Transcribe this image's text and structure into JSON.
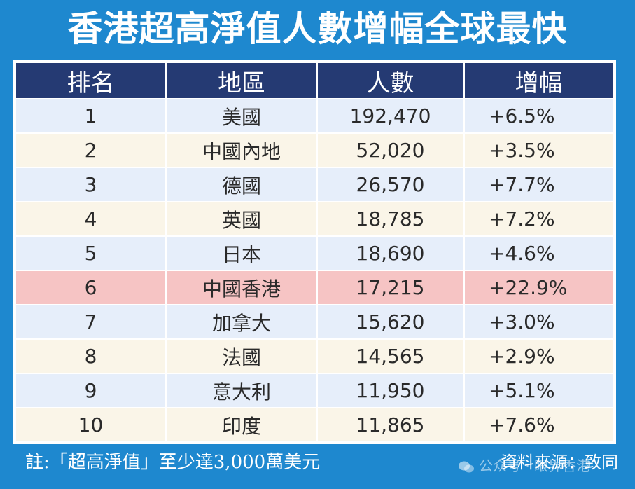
{
  "title": "香港超高淨值人數增幅全球最快",
  "table": {
    "headers": [
      "排名",
      "地區",
      "人數",
      "增幅"
    ],
    "rows": [
      {
        "rank": "1",
        "region": "美國",
        "count": "192,470",
        "growth": "+6.5%",
        "highlight": false
      },
      {
        "rank": "2",
        "region": "中國內地",
        "count": "52,020",
        "growth": "+3.5%",
        "highlight": false
      },
      {
        "rank": "3",
        "region": "德國",
        "count": "26,570",
        "growth": "+7.7%",
        "highlight": false
      },
      {
        "rank": "4",
        "region": "英國",
        "count": "18,785",
        "growth": "+7.2%",
        "highlight": false
      },
      {
        "rank": "5",
        "region": "日本",
        "count": "18,690",
        "growth": "+4.6%",
        "highlight": false
      },
      {
        "rank": "6",
        "region": "中國香港",
        "count": "17,215",
        "growth": "+22.9%",
        "highlight": true
      },
      {
        "rank": "7",
        "region": "加拿大",
        "count": "15,620",
        "growth": "+3.0%",
        "highlight": false
      },
      {
        "rank": "8",
        "region": "法國",
        "count": "14,565",
        "growth": "+2.9%",
        "highlight": false
      },
      {
        "rank": "9",
        "region": "意大利",
        "count": "11,950",
        "growth": "+5.1%",
        "highlight": false
      },
      {
        "rank": "10",
        "region": "印度",
        "count": "11,865",
        "growth": "+7.6%",
        "highlight": false
      }
    ]
  },
  "footer": {
    "note": "註:「超高淨值」至少達3,000萬美元",
    "source": "資料來源：致同",
    "watermark": "公众号 · 眼界香港"
  },
  "colors": {
    "background": "#1e88cf",
    "header": "#253a73",
    "row_odd": "#e6eefa",
    "row_even": "#faf5e8",
    "row_highlight": "#f6c4c4"
  }
}
